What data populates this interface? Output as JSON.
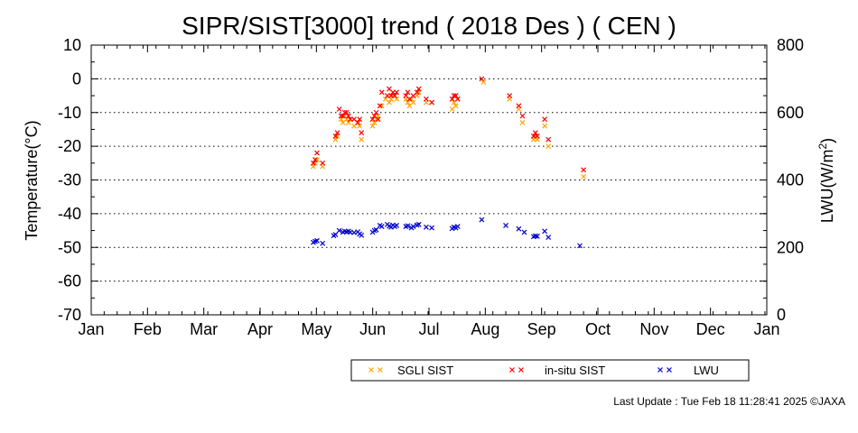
{
  "chart_data": {
    "type": "scatter",
    "title": "SIPR/SIST[3000] trend ( 2018 Des ) ( CEN )",
    "ylabel": "Temperature(°C)",
    "y2label_prefix": "LWU(W/m",
    "y2label_sup": "2",
    "y2label_suffix": ")",
    "ylim": [
      -70,
      10
    ],
    "y2lim": [
      0,
      800
    ],
    "yticks": [
      10,
      0,
      -10,
      -20,
      -30,
      -40,
      -50,
      -60,
      -70
    ],
    "y2ticks": [
      800,
      600,
      400,
      200,
      0
    ],
    "months": [
      "Jan",
      "Feb",
      "Mar",
      "Apr",
      "May",
      "Jun",
      "Jul",
      "Aug",
      "Sep",
      "Oct",
      "Nov",
      "Dec",
      "Jan"
    ],
    "grid": "horizontal dotted",
    "legend_position": "bottom",
    "series": [
      {
        "name": "SGLI SIST",
        "color": "#ffa500",
        "axis": "left",
        "points": [
          [
            "May 1",
            -26
          ],
          [
            "May 2",
            -25
          ],
          [
            "May 3",
            -24
          ],
          [
            "May 6",
            -26
          ],
          [
            "May 13",
            -18
          ],
          [
            "May 14",
            -17
          ],
          [
            "May 16",
            -12
          ],
          [
            "May 17",
            -13
          ],
          [
            "May 18",
            -11
          ],
          [
            "May 19",
            -12
          ],
          [
            "May 20",
            -13
          ],
          [
            "May 21",
            -12
          ],
          [
            "May 23",
            -14
          ],
          [
            "May 25",
            -13
          ],
          [
            "May 26",
            -14
          ],
          [
            "May 27",
            -18
          ],
          [
            "Jun 2",
            -14
          ],
          [
            "Jun 3",
            -13
          ],
          [
            "Jun 4",
            -12
          ],
          [
            "Jun 5",
            -11
          ],
          [
            "Jun 7",
            -8
          ],
          [
            "Jun 9",
            -6
          ],
          [
            "Jun 11",
            -7
          ],
          [
            "Jun 12",
            -6
          ],
          [
            "Jun 13",
            -5
          ],
          [
            "Jun 14",
            -5
          ],
          [
            "Jun 15",
            -6
          ],
          [
            "Jun 20",
            -6
          ],
          [
            "Jun 21",
            -7
          ],
          [
            "Jun 22",
            -8
          ],
          [
            "Jun 23",
            -6
          ],
          [
            "Jun 24",
            -7
          ],
          [
            "Jun 26",
            -5
          ],
          [
            "Jun 27",
            -4
          ],
          [
            "Jul 1",
            -7
          ],
          [
            "Jul 4",
            -7
          ],
          [
            "Jul 15",
            -9
          ],
          [
            "Jul 16",
            -7
          ],
          [
            "Jul 17",
            -8
          ],
          [
            "Jul 18",
            -6
          ],
          [
            "Aug 1",
            -1
          ],
          [
            "Aug 15",
            -6
          ],
          [
            "Aug 20",
            -9
          ],
          [
            "Aug 22",
            -13
          ],
          [
            "Aug 28",
            -18
          ],
          [
            "Aug 29",
            -17
          ],
          [
            "Aug 30",
            -18
          ],
          [
            "Sep 3",
            -14
          ],
          [
            "Sep 5",
            -20
          ],
          [
            "Sep 24",
            -29
          ]
        ]
      },
      {
        "name": "in-situ SIST",
        "color": "#ff0000",
        "axis": "left",
        "points": [
          [
            "May 1",
            -25
          ],
          [
            "May 2",
            -24
          ],
          [
            "May 3",
            -22
          ],
          [
            "May 6",
            -25
          ],
          [
            "May 13",
            -17
          ],
          [
            "May 14",
            -16
          ],
          [
            "May 15",
            -9
          ],
          [
            "May 16",
            -11
          ],
          [
            "May 17",
            -11
          ],
          [
            "May 18",
            -10
          ],
          [
            "May 19",
            -10
          ],
          [
            "May 20",
            -11
          ],
          [
            "May 21",
            -12
          ],
          [
            "May 23",
            -12
          ],
          [
            "May 25",
            -13
          ],
          [
            "May 26",
            -12
          ],
          [
            "May 27",
            -16
          ],
          [
            "Jun 2",
            -12
          ],
          [
            "Jun 3",
            -11
          ],
          [
            "Jun 4",
            -10
          ],
          [
            "Jun 5",
            -12
          ],
          [
            "Jun 6",
            -8
          ],
          [
            "Jun 7",
            -4
          ],
          [
            "Jun 10",
            -5
          ],
          [
            "Jun 11",
            -3
          ],
          [
            "Jun 12",
            -5
          ],
          [
            "Jun 13",
            -4
          ],
          [
            "Jun 14",
            -5
          ],
          [
            "Jun 15",
            -4
          ],
          [
            "Jun 20",
            -5
          ],
          [
            "Jun 21",
            -4
          ],
          [
            "Jun 22",
            -6
          ],
          [
            "Jun 24",
            -5
          ],
          [
            "Jun 26",
            -4
          ],
          [
            "Jun 27",
            -3
          ],
          [
            "Jul 1",
            -6
          ],
          [
            "Jul 4",
            -7
          ],
          [
            "Jul 15",
            -6
          ],
          [
            "Jul 16",
            -5
          ],
          [
            "Jul 17",
            -5
          ],
          [
            "Jul 18",
            -6
          ],
          [
            "Jul 31",
            0
          ],
          [
            "Aug 15",
            -5
          ],
          [
            "Aug 20",
            -8
          ],
          [
            "Aug 22",
            -11
          ],
          [
            "Aug 28",
            -17
          ],
          [
            "Aug 29",
            -16
          ],
          [
            "Aug 30",
            -17
          ],
          [
            "Sep 3",
            -12
          ],
          [
            "Sep 5",
            -18
          ],
          [
            "Sep 24",
            -27
          ]
        ]
      },
      {
        "name": "LWU",
        "color": "#0000cc",
        "axis": "right",
        "points": [
          [
            "May 1",
            215
          ],
          [
            "May 2",
            218
          ],
          [
            "May 3",
            220
          ],
          [
            "May 6",
            212
          ],
          [
            "May 12",
            235
          ],
          [
            "May 13",
            238
          ],
          [
            "May 15",
            250
          ],
          [
            "May 17",
            245
          ],
          [
            "May 18",
            248
          ],
          [
            "May 19",
            246
          ],
          [
            "May 20",
            248
          ],
          [
            "May 21",
            245
          ],
          [
            "May 23",
            244
          ],
          [
            "May 25",
            246
          ],
          [
            "May 26",
            240
          ],
          [
            "May 27",
            236
          ],
          [
            "Jun 2",
            245
          ],
          [
            "Jun 3",
            250
          ],
          [
            "Jun 4",
            252
          ],
          [
            "Jun 6",
            265
          ],
          [
            "Jun 7",
            262
          ],
          [
            "Jun 10",
            268
          ],
          [
            "Jun 11",
            263
          ],
          [
            "Jun 12",
            260
          ],
          [
            "Jun 13",
            266
          ],
          [
            "Jun 14",
            262
          ],
          [
            "Jun 15",
            265
          ],
          [
            "Jun 20",
            262
          ],
          [
            "Jun 21",
            264
          ],
          [
            "Jun 23",
            258
          ],
          [
            "Jun 24",
            262
          ],
          [
            "Jun 26",
            266
          ],
          [
            "Jun 27",
            268
          ],
          [
            "Jul 1",
            260
          ],
          [
            "Jul 4",
            258
          ],
          [
            "Jul 15",
            256
          ],
          [
            "Jul 16",
            260
          ],
          [
            "Jul 17",
            258
          ],
          [
            "Jul 18",
            262
          ],
          [
            "Jul 31",
            282
          ],
          [
            "Aug 13",
            265
          ],
          [
            "Aug 20",
            255
          ],
          [
            "Aug 23",
            245
          ],
          [
            "Aug 28",
            232
          ],
          [
            "Aug 29",
            234
          ],
          [
            "Aug 30",
            233
          ],
          [
            "Sep 3",
            248
          ],
          [
            "Sep 5",
            230
          ],
          [
            "Sep 22",
            205
          ]
        ]
      }
    ]
  },
  "footer": {
    "last_update": "Last Update : Tue Feb 18 11:28:41 2025  ©JAXA"
  }
}
